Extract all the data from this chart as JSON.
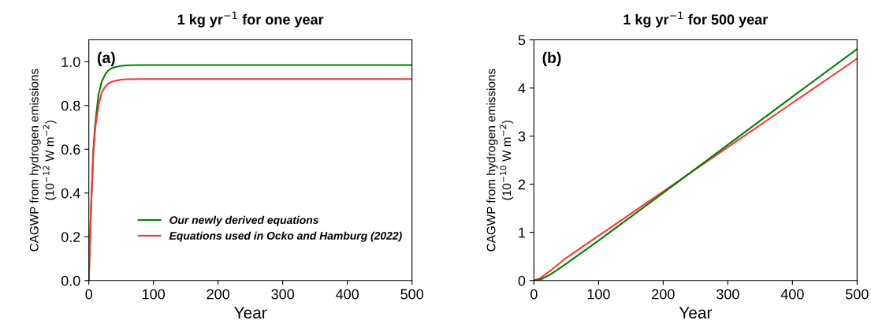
{
  "chart_data": [
    {
      "type": "line",
      "title": "1 kg yr$^{−1}$ for one year",
      "xlabel": "Year",
      "ylabel": "CAGWP from hydrogen emissions\n(10$^{−12}$ W m$^{−2}$)",
      "annotations": [
        "(a)"
      ],
      "xlim": [
        0,
        500
      ],
      "xticks": [
        0,
        100,
        200,
        300,
        400,
        500
      ],
      "ylim": [
        0,
        1.1
      ],
      "yticks": [
        {
          "value": 0,
          "label": "0.0"
        },
        0.2,
        0.4,
        0.6,
        0.8,
        {
          "value": 1,
          "label": "1.0"
        }
      ],
      "legend": "lower right",
      "grid": false,
      "marker": "none",
      "line_style": "solid",
      "series": [
        {
          "name": "Our newly derived equations",
          "color": "#008000",
          "x": [
            0,
            3,
            7,
            10,
            15,
            20,
            25,
            30,
            35,
            40,
            50,
            60,
            80,
            100,
            500
          ],
          "values": [
            0,
            0.3,
            0.6,
            0.72,
            0.85,
            0.91,
            0.94,
            0.96,
            0.97,
            0.975,
            0.981,
            0.984,
            0.985,
            0.985,
            0.985
          ]
        },
        {
          "name": "Equations used in Ocko and Hamburg (2022)",
          "color": "#ff3333",
          "x": [
            0,
            3,
            7,
            10,
            15,
            20,
            25,
            30,
            35,
            40,
            50,
            60,
            80,
            100,
            500
          ],
          "values": [
            0,
            0.3,
            0.58,
            0.7,
            0.8,
            0.86,
            0.885,
            0.9,
            0.908,
            0.913,
            0.918,
            0.92,
            0.921,
            0.921,
            0.921
          ]
        }
      ]
    },
    {
      "type": "line",
      "title": "1 kg yr$^{−1}$ for 500 year",
      "xlabel": "Year",
      "ylabel": "CAGWP from hydrogen emissions\n(10$^{−10}$ W m$^{−2}$)",
      "annotations": [
        "(b)"
      ],
      "xlim": [
        0,
        500
      ],
      "xticks": [
        0,
        100,
        200,
        300,
        400,
        500
      ],
      "ylim": [
        0,
        5
      ],
      "yticks": [
        0,
        1,
        2,
        3,
        4,
        5
      ],
      "grid": false,
      "marker": "none",
      "line_style": "solid",
      "series": [
        {
          "color": "#ff3333",
          "x": [
            0,
            10,
            25,
            50,
            100,
            200,
            300,
            400,
            500
          ],
          "values": [
            0,
            0.05,
            0.2,
            0.47,
            0.93,
            1.85,
            2.77,
            3.69,
            4.61
          ]
        },
        {
          "color": "#008000",
          "x": [
            0,
            10,
            25,
            50,
            100,
            200,
            300,
            400,
            500
          ],
          "values": [
            0,
            0.02,
            0.12,
            0.35,
            0.83,
            1.82,
            2.82,
            3.82,
            4.81
          ]
        }
      ]
    }
  ]
}
